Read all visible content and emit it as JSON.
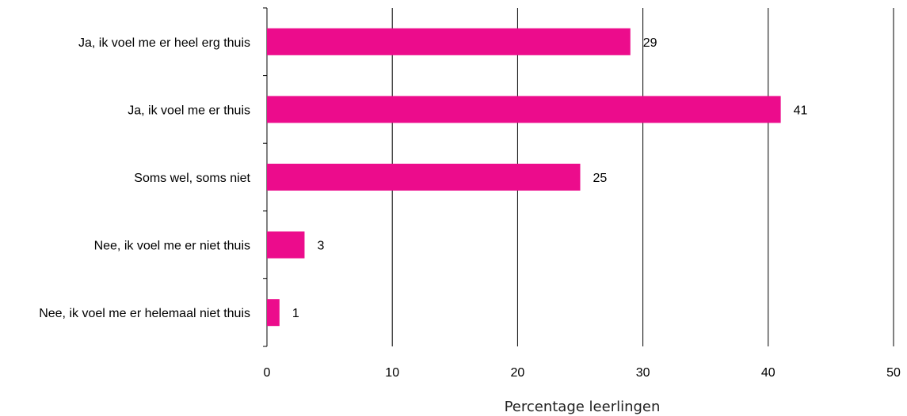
{
  "chart_data": {
    "type": "bar",
    "orientation": "horizontal",
    "categories": [
      "Ja, ik voel me er heel erg thuis",
      "Ja, ik voel me er thuis",
      "Soms wel, soms niet",
      "Nee, ik voel me er niet thuis",
      "Nee, ik voel me er helemaal niet thuis"
    ],
    "values": [
      29,
      41,
      25,
      3,
      1
    ],
    "data_labels": [
      "29",
      "41",
      "25",
      "3",
      "1"
    ],
    "xlabel": "Percentage leerlingen",
    "ylabel": "",
    "xlim": [
      0,
      50
    ],
    "xticks": [
      0,
      10,
      20,
      30,
      40,
      50
    ],
    "grid": "vertical",
    "legend": "none",
    "bar_color": "#EC0C8C"
  }
}
